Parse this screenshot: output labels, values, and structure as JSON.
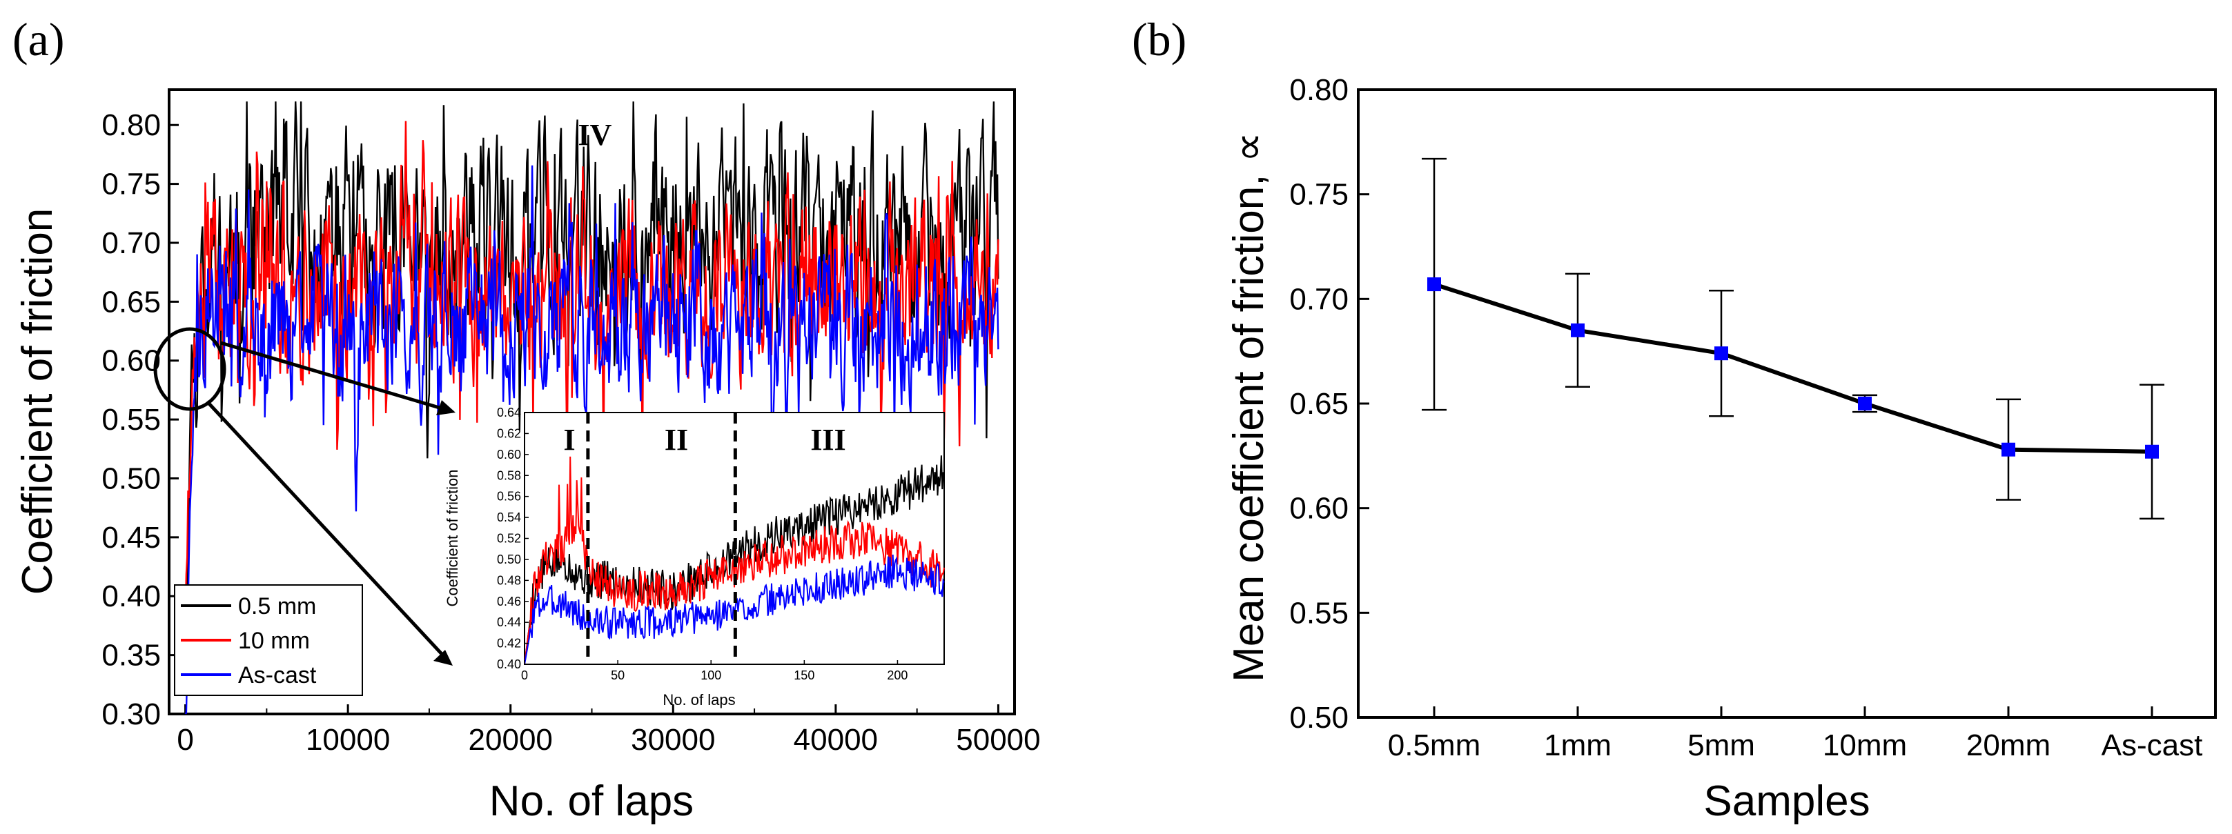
{
  "chart_data": [
    {
      "type": "line",
      "panel_label": "(a)",
      "xlabel": "No. of laps",
      "ylabel": "Coefficient of friction",
      "xlim": [
        -1000,
        51000
      ],
      "ylim": [
        0.3,
        0.83
      ],
      "x_ticks": [
        "0",
        "10000",
        "20000",
        "30000",
        "40000",
        "50000"
      ],
      "y_ticks": [
        "0.30",
        "0.35",
        "0.40",
        "0.45",
        "0.50",
        "0.55",
        "0.60",
        "0.65",
        "0.70",
        "0.75",
        "0.80"
      ],
      "annotation": "IV",
      "legend_position": "bottom-left",
      "series": [
        {
          "name": "0.5 mm",
          "color": "#000000",
          "mean": 0.7,
          "spread": 0.045,
          "seed": 11,
          "x": [
            0,
            400,
            900,
            1500,
            3000,
            6000,
            12000,
            20000,
            30000,
            40000,
            45000,
            50000
          ],
          "y": [
            0.4,
            0.6,
            0.66,
            0.7,
            0.71,
            0.72,
            0.7,
            0.7,
            0.7,
            0.71,
            0.7,
            0.71
          ]
        },
        {
          "name": "10 mm",
          "color": "#ff0000",
          "mean": 0.66,
          "spread": 0.04,
          "seed": 23,
          "x": [
            0,
            400,
            900,
            1500,
            3000,
            6000,
            12000,
            20000,
            30000,
            40000,
            45000,
            50000
          ],
          "y": [
            0.4,
            0.58,
            0.66,
            0.68,
            0.66,
            0.66,
            0.66,
            0.66,
            0.66,
            0.67,
            0.67,
            0.67
          ]
        },
        {
          "name": "As-cast",
          "color": "#0000ff",
          "mean": 0.63,
          "spread": 0.035,
          "seed": 37,
          "x": [
            0,
            400,
            900,
            1500,
            3000,
            6000,
            12000,
            20000,
            30000,
            40000,
            45000,
            50000
          ],
          "y": [
            0.3,
            0.52,
            0.62,
            0.65,
            0.63,
            0.63,
            0.63,
            0.63,
            0.63,
            0.63,
            0.63,
            0.64
          ]
        }
      ],
      "inset": {
        "xlabel": "No. of laps",
        "ylabel": "Coefficient of friction",
        "xlim": [
          0,
          225
        ],
        "ylim": [
          0.4,
          0.64
        ],
        "x_ticks": [
          "0",
          "50",
          "100",
          "150",
          "200"
        ],
        "y_ticks": [
          "0.40",
          "0.42",
          "0.44",
          "0.46",
          "0.48",
          "0.50",
          "0.52",
          "0.54",
          "0.56",
          "0.58",
          "0.60",
          "0.62",
          "0.64"
        ],
        "regions": [
          "I",
          "II",
          "III"
        ],
        "dividers": [
          34,
          113
        ],
        "series": [
          {
            "name": "0.5 mm",
            "color": "#000000",
            "spread": 0.012,
            "seed": 5,
            "x": [
              0,
              5,
              10,
              20,
              34,
              50,
              80,
              110,
              130,
              150,
              180,
              200,
              220
            ],
            "y": [
              0.4,
              0.47,
              0.49,
              0.5,
              0.48,
              0.48,
              0.47,
              0.5,
              0.52,
              0.53,
              0.55,
              0.56,
              0.58
            ]
          },
          {
            "name": "10 mm",
            "color": "#ff0000",
            "spread": 0.012,
            "seed": 9,
            "x": [
              0,
              5,
              10,
              20,
              30,
              34,
              50,
              80,
              110,
              130,
              150,
              180,
              200,
              220
            ],
            "y": [
              0.4,
              0.47,
              0.5,
              0.51,
              0.54,
              0.49,
              0.47,
              0.47,
              0.49,
              0.5,
              0.51,
              0.52,
              0.51,
              0.49
            ]
          },
          {
            "name": "As-cast",
            "color": "#0000ff",
            "spread": 0.01,
            "seed": 3,
            "x": [
              0,
              5,
              10,
              20,
              34,
              50,
              80,
              110,
              130,
              150,
              180,
              200,
              220
            ],
            "y": [
              0.4,
              0.45,
              0.46,
              0.46,
              0.44,
              0.44,
              0.44,
              0.45,
              0.46,
              0.47,
              0.48,
              0.49,
              0.48
            ]
          }
        ]
      }
    },
    {
      "type": "line",
      "panel_label": "(b)",
      "xlabel": "Samples",
      "ylabel": "Mean coefficient of friction, ∝",
      "categories": [
        "0.5mm",
        "1mm",
        "5mm",
        "10mm",
        "20mm",
        "As-cast"
      ],
      "ylim": [
        0.5,
        0.8
      ],
      "y_ticks": [
        "0.50",
        "0.55",
        "0.60",
        "0.65",
        "0.70",
        "0.75",
        "0.80"
      ],
      "line_color": "#000000",
      "marker_color": "#0000ff",
      "values": [
        0.707,
        0.685,
        0.674,
        0.65,
        0.628,
        0.627
      ],
      "errors": [
        0.06,
        0.027,
        0.03,
        0.004,
        0.024,
        0.032
      ]
    }
  ]
}
